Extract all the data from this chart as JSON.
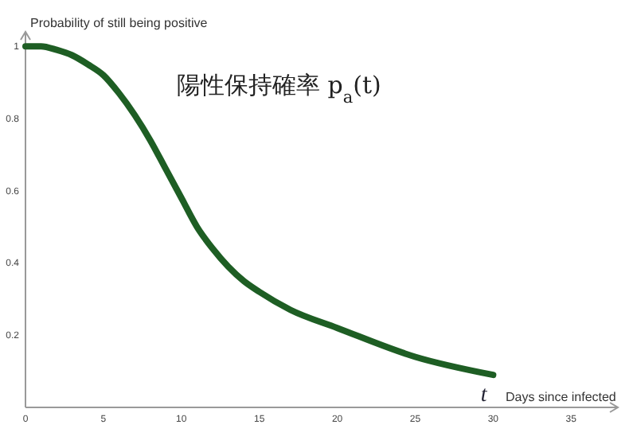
{
  "chart_data": {
    "type": "line",
    "ylabel": "Probability of still being positive",
    "xlabel": "Days since infected",
    "annotations": [
      "陽性保持確率 p$_{a}$(t)",
      "t"
    ],
    "x": [
      0,
      1,
      2,
      3,
      4,
      5,
      6,
      7,
      8,
      9,
      10,
      11,
      12,
      13,
      14,
      15,
      17,
      20,
      25,
      30
    ],
    "series": [
      {
        "color": "#1e5e24",
        "values": [
          1,
          1,
          0.99,
          0.975,
          0.95,
          0.92,
          0.87,
          0.81,
          0.74,
          0.66,
          0.58,
          0.5,
          0.44,
          0.39,
          0.35,
          0.32,
          0.27,
          0.22,
          0.14,
          0.09
        ]
      }
    ],
    "xlim": [
      0,
      38
    ],
    "ylim": [
      0,
      1.04
    ],
    "xticks": [
      0,
      5,
      10,
      15,
      20,
      25,
      30,
      35
    ],
    "yticks": [
      0.2,
      0.4,
      0.6,
      0.8,
      1
    ],
    "grid": false,
    "marker": "none",
    "line_style": "solid"
  }
}
